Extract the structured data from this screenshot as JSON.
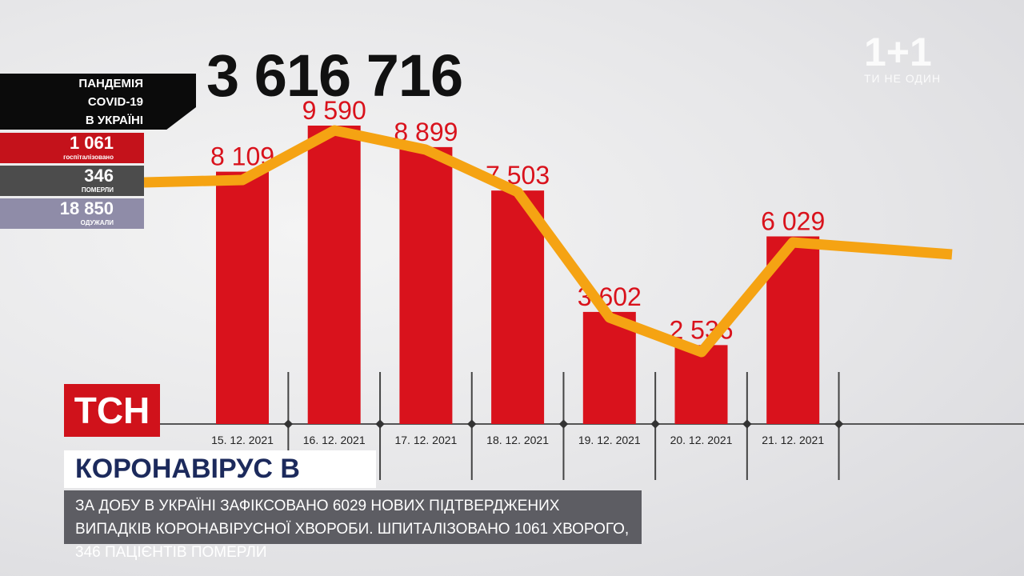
{
  "total": "3 616 716",
  "panel": {
    "title": [
      "ПАНДЕМІЯ",
      "COVID-19",
      "В УКРАЇНІ"
    ],
    "stats": [
      {
        "value": "1 061",
        "label": "госпіталізовано"
      },
      {
        "value": "346",
        "label": "ПОМЕРЛИ"
      },
      {
        "value": "18 850",
        "label": "ОДУЖАЛИ"
      }
    ]
  },
  "logo": {
    "brand": "1+1",
    "slogan": "ТИ НЕ ОДИН"
  },
  "show": "ТСН",
  "headline": "КОРОНАВІРУС В УКРАЇНІ",
  "ticker": "ЗА ДОБУ В УКРАЇНІ ЗАФІКСОВАНО 6029 НОВИХ ПІДТВЕРДЖЕНИХ ВИПАДКІВ КОРОНАВІРУСНОЇ ХВОРОБИ. ШПИТАЛІЗОВАНО 1061 ХВОРОГО, 346 ПАЦІЄНТІВ ПОМЕРЛИ",
  "chart_data": {
    "type": "bar",
    "categories": [
      "15. 12. 2021",
      "16. 12. 2021",
      "17. 12. 2021",
      "18. 12. 2021",
      "19. 12. 2021",
      "20. 12. 2021",
      "21. 12. 2021"
    ],
    "values": [
      8109,
      9590,
      8899,
      7503,
      3602,
      2536,
      6029
    ],
    "value_labels": [
      "8 109",
      "9 590",
      "8 899",
      "7 503",
      "3 602",
      "2 536",
      "6 029"
    ],
    "color": "#d9121c",
    "label_color": "#d9121c"
  }
}
